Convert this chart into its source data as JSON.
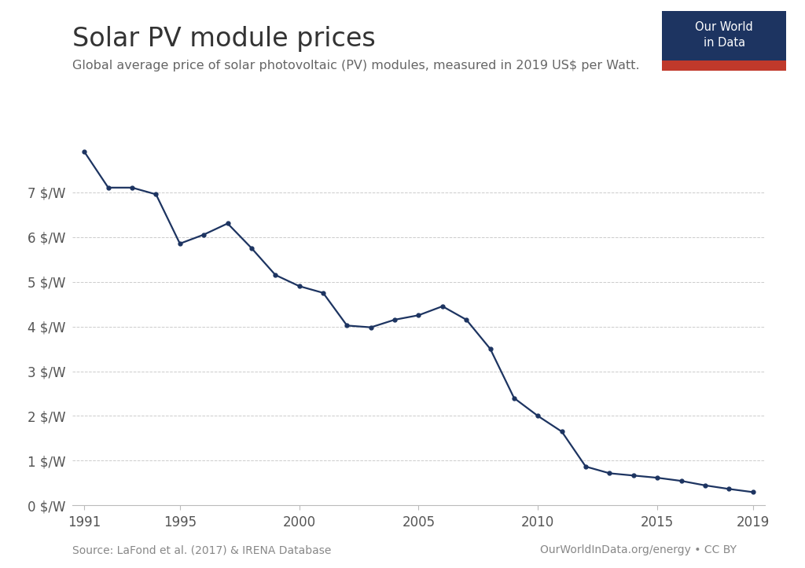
{
  "title": "Solar PV module prices",
  "subtitle": "Global average price of solar photovoltaic (PV) modules, measured in 2019 US$ per Watt.",
  "source_left": "Source: LaFond et al. (2017) & IRENA Database",
  "source_right": "OurWorldInData.org/energy • CC BY",
  "line_color": "#1D3461",
  "background_color": "#FFFFFF",
  "years": [
    1991,
    1992,
    1993,
    1994,
    1995,
    1996,
    1997,
    1998,
    1999,
    2000,
    2001,
    2002,
    2003,
    2004,
    2005,
    2006,
    2007,
    2008,
    2009,
    2010,
    2011,
    2012,
    2013,
    2014,
    2015,
    2016,
    2017,
    2018,
    2019
  ],
  "prices": [
    7.9,
    7.1,
    7.1,
    6.95,
    5.85,
    6.05,
    6.3,
    5.75,
    5.15,
    4.9,
    4.75,
    4.02,
    3.98,
    4.15,
    4.25,
    4.45,
    4.15,
    3.5,
    2.4,
    2.0,
    1.65,
    0.87,
    0.72,
    0.67,
    0.62,
    0.55,
    0.45,
    0.37,
    0.3
  ],
  "ylim": [
    0,
    8.5
  ],
  "yticks": [
    0,
    1,
    2,
    3,
    4,
    5,
    6,
    7
  ],
  "ytick_labels": [
    "0 $/W",
    "1 $/W",
    "2 $/W",
    "3 $/W",
    "4 $/W",
    "5 $/W",
    "6 $/W",
    "7 $/W"
  ],
  "xticks": [
    1991,
    1995,
    2000,
    2005,
    2010,
    2015,
    2019
  ],
  "xlim": [
    1990.5,
    2019.5
  ],
  "grid_color": "#CCCCCC",
  "marker_size": 3.5,
  "line_width": 1.6,
  "owid_box_color": "#1D3461",
  "owid_red": "#C0392B",
  "tick_label_color": "#555555",
  "spine_color": "#BBBBBB",
  "title_color": "#333333",
  "subtitle_color": "#666666",
  "source_color": "#888888"
}
